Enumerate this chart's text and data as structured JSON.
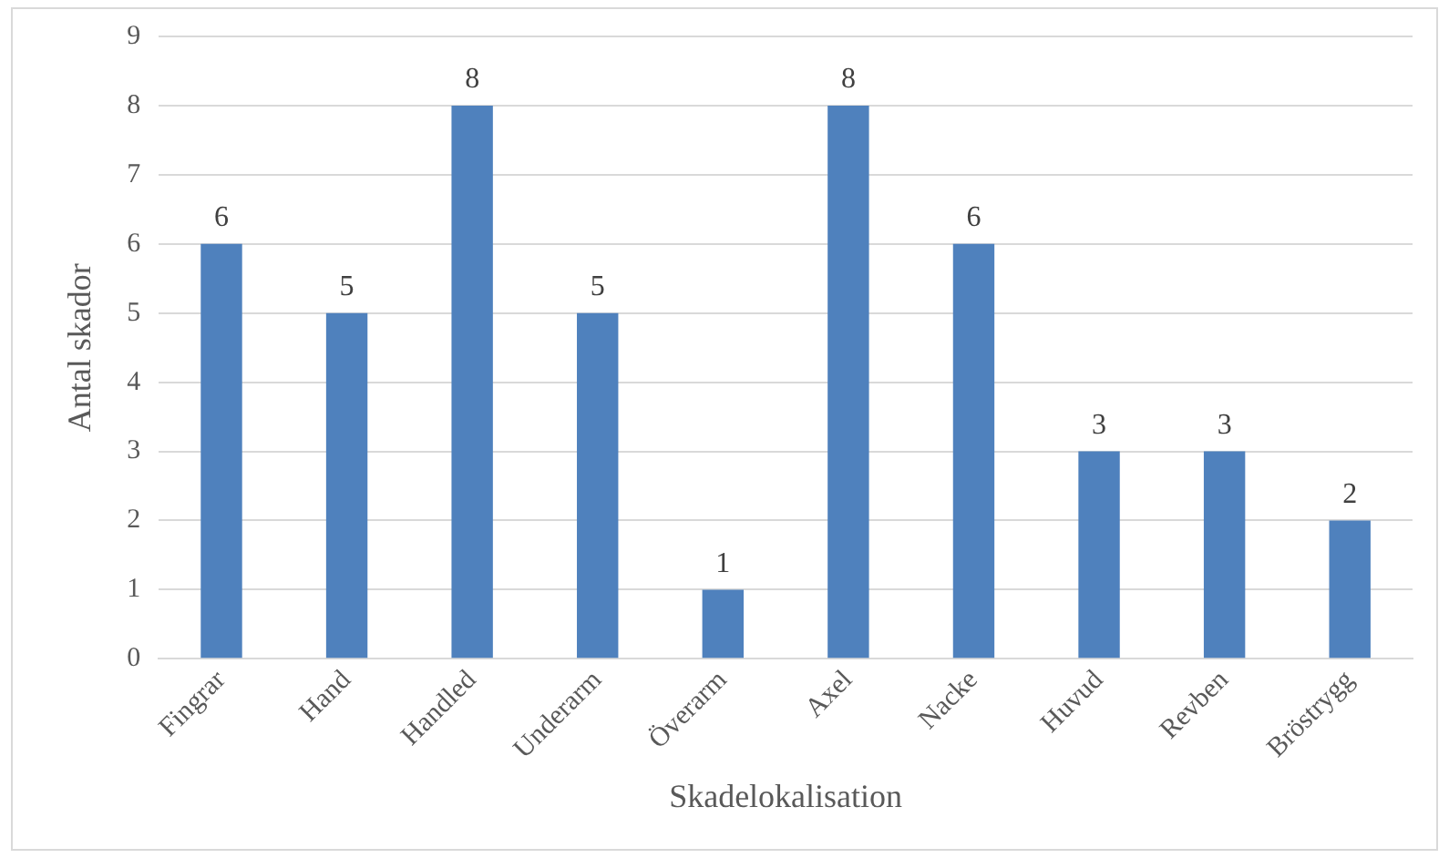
{
  "chart_data": {
    "type": "bar",
    "categories": [
      "Fingrar",
      "Hand",
      "Handled",
      "Underarm",
      "Överarm",
      "Axel",
      "Nacke",
      "Huvud",
      "Revben",
      "Bröstrygg"
    ],
    "values": [
      6,
      5,
      8,
      5,
      1,
      8,
      6,
      3,
      3,
      2
    ],
    "color": "#4f81bd",
    "xlabel": "Skadelokalisation",
    "ylabel": "Antal skador",
    "ylim": [
      0,
      9
    ],
    "yticks": [
      0,
      1,
      2,
      3,
      4,
      5,
      6,
      7,
      8,
      9
    ],
    "grid": "y",
    "data_labels": true
  }
}
